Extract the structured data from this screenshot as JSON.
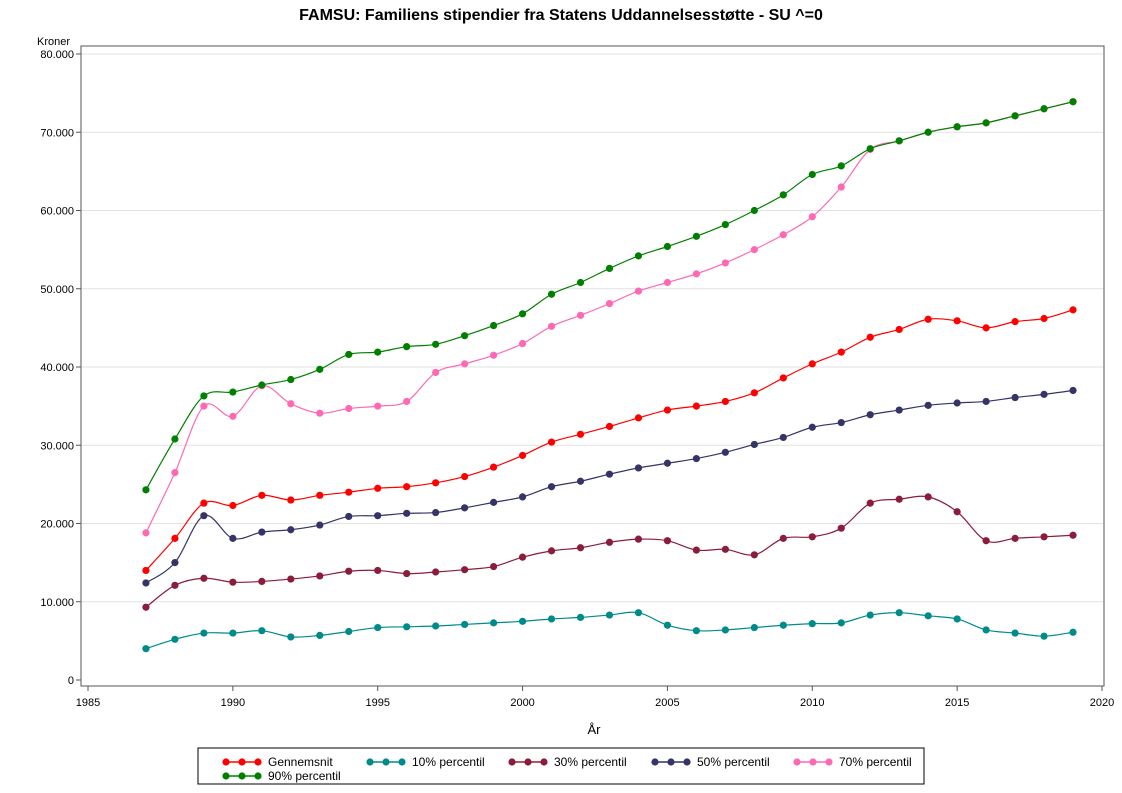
{
  "chart_data": {
    "type": "line",
    "title": "FAMSU: Familiens stipendier fra Statens Uddannelsesstøtte - SU ^=0",
    "xlabel": "År",
    "ylabel": "Kroner",
    "xlim": [
      1985,
      2020
    ],
    "ylim": [
      0,
      80000
    ],
    "x_ticks": [
      1985,
      1990,
      1995,
      2000,
      2005,
      2010,
      2015,
      2020
    ],
    "x_tick_labels": [
      "1985",
      "1990",
      "1995",
      "2000",
      "2005",
      "2010",
      "2015",
      "2020"
    ],
    "y_ticks": [
      0,
      10000,
      20000,
      30000,
      40000,
      50000,
      60000,
      70000,
      80000
    ],
    "y_tick_labels": [
      "0",
      "10.000",
      "20.000",
      "30.000",
      "40.000",
      "50.000",
      "60.000",
      "70.000",
      "80.000"
    ],
    "grid": "horizontal",
    "legend_position": "bottom",
    "x": [
      1987,
      1988,
      1989,
      1990,
      1991,
      1992,
      1993,
      1994,
      1995,
      1996,
      1997,
      1998,
      1999,
      2000,
      2001,
      2002,
      2003,
      2004,
      2005,
      2006,
      2007,
      2008,
      2009,
      2010,
      2011,
      2012,
      2013,
      2014,
      2015,
      2016,
      2017,
      2018,
      2019
    ],
    "series": [
      {
        "name": "Gennemsnit",
        "color": "#ff0000",
        "values": [
          14000,
          18100,
          22600,
          22300,
          23600,
          23000,
          23600,
          24000,
          24500,
          24700,
          25200,
          26000,
          27200,
          28700,
          30400,
          31400,
          32400,
          33500,
          34500,
          35000,
          35600,
          36700,
          38600,
          40400,
          41900,
          43800,
          44800,
          46100,
          45900,
          45000,
          45800,
          46200,
          47300
        ]
      },
      {
        "name": "10% percentil",
        "color": "#008b8b",
        "values": [
          4000,
          5200,
          6000,
          6000,
          6300,
          5500,
          5700,
          6200,
          6700,
          6800,
          6900,
          7100,
          7300,
          7500,
          7800,
          8000,
          8300,
          8600,
          7000,
          6300,
          6400,
          6700,
          7000,
          7200,
          7300,
          8300,
          8600,
          8200,
          7800,
          6400,
          6000,
          5600,
          6100
        ]
      },
      {
        "name": "30% percentil",
        "color": "#8b1c3c",
        "values": [
          9300,
          12100,
          13000,
          12500,
          12600,
          12900,
          13300,
          13900,
          14000,
          13600,
          13800,
          14100,
          14500,
          15700,
          16500,
          16900,
          17600,
          18000,
          17800,
          16600,
          16700,
          16000,
          18100,
          18300,
          19400,
          22600,
          23100,
          23400,
          21500,
          17800,
          18100,
          18300,
          18500
        ]
      },
      {
        "name": "50% percentil",
        "color": "#343466",
        "values": [
          12400,
          15000,
          21000,
          18100,
          18900,
          19200,
          19800,
          20900,
          21000,
          21300,
          21400,
          22000,
          22700,
          23400,
          24700,
          25400,
          26300,
          27100,
          27700,
          28300,
          29100,
          30100,
          31000,
          32300,
          32900,
          33900,
          34500,
          35100,
          35400,
          35600,
          36100,
          36500,
          37000
        ]
      },
      {
        "name": "70% percentil",
        "color": "#ff69b4",
        "values": [
          18800,
          26500,
          35000,
          33700,
          37600,
          35300,
          34100,
          34700,
          35000,
          35600,
          39300,
          40400,
          41500,
          43000,
          45200,
          46600,
          48100,
          49700,
          50800,
          51900,
          53300,
          55000,
          56900,
          59200,
          63000,
          67800,
          68900,
          70000,
          70700,
          71200,
          72100,
          73000,
          73900
        ]
      },
      {
        "name": "90% percentil",
        "color": "#008000",
        "values": [
          24300,
          30800,
          36300,
          36800,
          37700,
          38400,
          39700,
          41600,
          41900,
          42600,
          42900,
          44000,
          45300,
          46800,
          49300,
          50800,
          52600,
          54200,
          55400,
          56700,
          58200,
          60000,
          62000,
          64600,
          65700,
          67900,
          68900,
          70000,
          70700,
          71200,
          72100,
          73000,
          73900
        ]
      }
    ]
  }
}
